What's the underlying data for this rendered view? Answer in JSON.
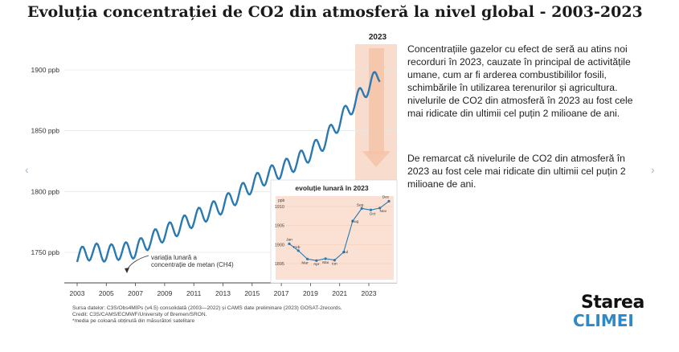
{
  "title": "Evoluția concentrației de CO2 din atmosferă la nivel global - 2003-2023",
  "paragraph_1": "Concentrațiile gazelor cu efect de seră au atins noi recorduri în 2023, cauzate în principal de activitățile umane, cum ar fi arderea combustibililor fosili, schimbările în utilizarea terenurilor și agricultura. nivelurile de CO2 din atmosferă în 2023 au fost cele mai ridicate din ultimii cel puțin 2 milioane de ani.",
  "paragraph_2": "De remarcat că nivelurile de CO2 din atmosferă în 2023 au fost cele mai ridicate din ultimii cel puțin 2 milioane de ani.",
  "nav": {
    "prev": "‹",
    "next": "›"
  },
  "source_lines": [
    "Sursa datelor: C3S/Obs4MIPs (v4.5) consolidată (2003—2022) și CAMS date preliminare (2023) GOSAT-2records.",
    "Credit: C3S/CAMS/ECMWF/University of Bremen/SRON.",
    "*media pe coloană obținută din măsurători satelitare"
  ],
  "logo": {
    "line1": "Starea",
    "line2": "CLIMEI"
  },
  "colors": {
    "line": "#2a79b0",
    "highlight": "#f8dccd",
    "arrow": "#f5c3a7",
    "grid": "#e6e6e6",
    "logo_blue": "#2f89c8"
  },
  "chart_data": [
    {
      "type": "line",
      "title": "",
      "ylabel": "",
      "xlabel": "",
      "ylim": [
        1725,
        1915
      ],
      "xlim": [
        2002.5,
        2025.5
      ],
      "x_ticks": [
        "2003",
        "2005",
        "2007",
        "2009",
        "2011",
        "2013",
        "2015",
        "2017",
        "2019",
        "2021",
        "2023"
      ],
      "y_ticks": [
        "1750 ppb",
        "1800 ppb",
        "1850 ppb",
        "1900 ppb"
      ],
      "grid": true,
      "highlight_label": "2023",
      "annotation": "variația lunară a\nconcentrație de metan (CH4)",
      "series": [
        {
          "trend": [
            [
              2003,
              1746
            ],
            [
              2004,
              1751
            ],
            [
              2005,
              1749
            ],
            [
              2006,
              1751
            ],
            [
              2007,
              1752
            ],
            [
              2008,
              1760
            ],
            [
              2009,
              1766
            ],
            [
              2010,
              1771
            ],
            [
              2011,
              1778
            ],
            [
              2012,
              1783
            ],
            [
              2013,
              1789
            ],
            [
              2014,
              1797
            ],
            [
              2015,
              1806
            ],
            [
              2016,
              1813
            ],
            [
              2017,
              1818
            ],
            [
              2018,
              1824
            ],
            [
              2019,
              1832
            ],
            [
              2020,
              1842
            ],
            [
              2021,
              1858
            ],
            [
              2022,
              1873
            ],
            [
              2023,
              1887
            ],
            [
              2023.75,
              1896
            ]
          ],
          "seasonal_amplitude": 7
        }
      ]
    },
    {
      "type": "line",
      "title": "evoluție lunară în 2023",
      "ylabel": "ppb",
      "ylim": [
        1893,
        1912
      ],
      "y_ticks": [
        "1895",
        "1900",
        "1905",
        "1910"
      ],
      "grid": true,
      "categories": [
        "Jan",
        "Feb",
        "Mar",
        "Apr",
        "Mai",
        "Iun",
        "Iul",
        "Aug",
        "Sep",
        "Oct",
        "Nov",
        "Dec"
      ],
      "values": [
        1900.2,
        1898.4,
        1896.2,
        1895.8,
        1896.3,
        1895.9,
        1898.0,
        1906.2,
        1909.5,
        1909.1,
        1909.6,
        1911.4
      ]
    }
  ]
}
